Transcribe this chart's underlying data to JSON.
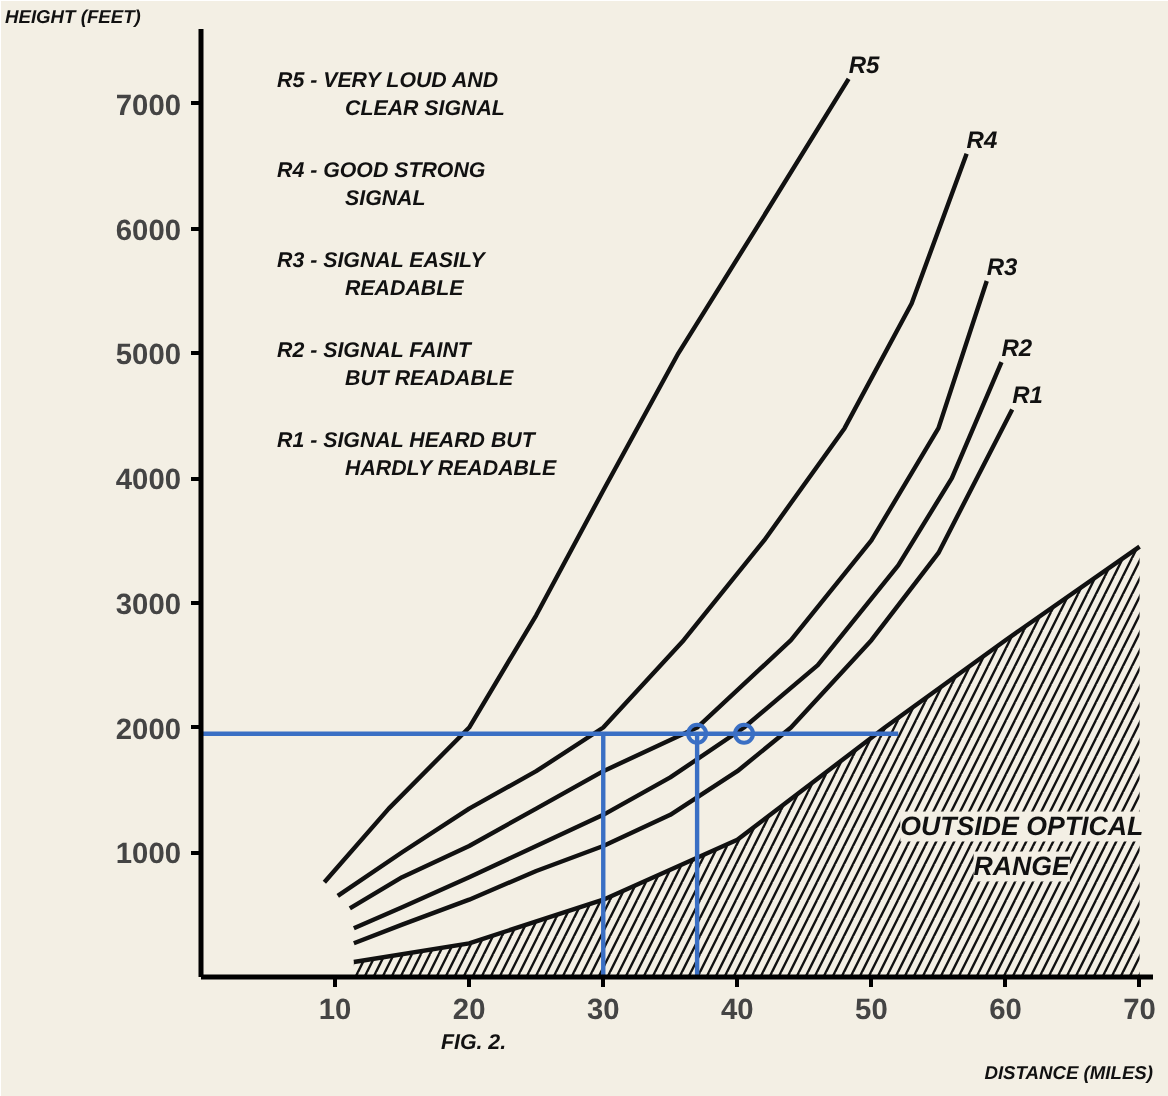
{
  "chart_data": {
    "type": "line",
    "xlabel": "DISTANCE (MILES)",
    "ylabel": "HEIGHT (FEET)",
    "xlim": [
      0,
      71
    ],
    "ylim": [
      0,
      7600
    ],
    "xticks": [
      10,
      20,
      30,
      40,
      50,
      60,
      70
    ],
    "yticks": [
      1000,
      2000,
      3000,
      4000,
      5000,
      6000,
      7000
    ],
    "grid": false,
    "marker": "none",
    "line_style": "solid",
    "series": [
      {
        "name": "R5",
        "color": "#111111",
        "x": [
          9.2,
          14,
          20,
          25,
          30,
          35.6,
          41.4,
          48.3
        ],
        "values": [
          760,
          1350,
          2000,
          2900,
          3900,
          5000,
          6000,
          7200
        ]
      },
      {
        "name": "R4",
        "color": "#111111",
        "x": [
          10.2,
          15,
          20,
          25,
          30,
          36,
          42,
          48,
          53,
          57.1
        ],
        "values": [
          650,
          1000,
          1350,
          1650,
          2000,
          2700,
          3500,
          4400,
          5400,
          6600
        ]
      },
      {
        "name": "R3",
        "color": "#111111",
        "x": [
          11.1,
          15,
          20,
          25,
          30,
          37,
          44,
          50,
          55,
          58.6
        ],
        "values": [
          550,
          800,
          1050,
          1350,
          1650,
          2000,
          2700,
          3500,
          4400,
          5580
        ]
      },
      {
        "name": "R2",
        "color": "#111111",
        "x": [
          11.4,
          15,
          20,
          25,
          30,
          35,
          40.5,
          46,
          52,
          56,
          59.7
        ],
        "values": [
          390,
          560,
          800,
          1050,
          1300,
          1600,
          2000,
          2500,
          3300,
          4000,
          4930
        ]
      },
      {
        "name": "R1",
        "color": "#111111",
        "x": [
          11.4,
          15,
          20,
          25,
          30,
          35,
          40,
          44,
          50,
          55,
          60.5
        ],
        "values": [
          270,
          420,
          620,
          850,
          1050,
          1300,
          1650,
          2000,
          2700,
          3400,
          4550
        ]
      },
      {
        "name": "OUTSIDE OPTICAL RANGE",
        "type": "area",
        "color": "#111111",
        "x": [
          11.4,
          20,
          30,
          40,
          51,
          60,
          70
        ],
        "values": [
          120,
          270,
          620,
          1100,
          2000,
          2700,
          3450
        ]
      },
      {
        "color": "#3a6fc4",
        "x": [
          0,
          52
        ],
        "values": [
          1950,
          1950
        ]
      },
      {
        "color": "#3a6fc4",
        "x": [
          30,
          30
        ],
        "values": [
          0,
          1950
        ]
      },
      {
        "color": "#3a6fc4",
        "x": [
          37,
          37
        ],
        "values": [
          0,
          1950
        ]
      },
      {
        "type": "scatter",
        "marker": "circle",
        "color": "#3a6fc4",
        "x": [
          37,
          40.5
        ],
        "values": [
          1950,
          1950
        ]
      }
    ],
    "annotations": [
      "R5 - VERY LOUD AND CLEAR SIGNAL",
      "R4 - GOOD STRONG SIGNAL",
      "R3 - SIGNAL EASILY READABLE",
      "R2 - SIGNAL FAINT BUT READABLE",
      "R1 - SIGNAL HEARD BUT HARDLY READABLE",
      "FIG. 2."
    ]
  }
}
